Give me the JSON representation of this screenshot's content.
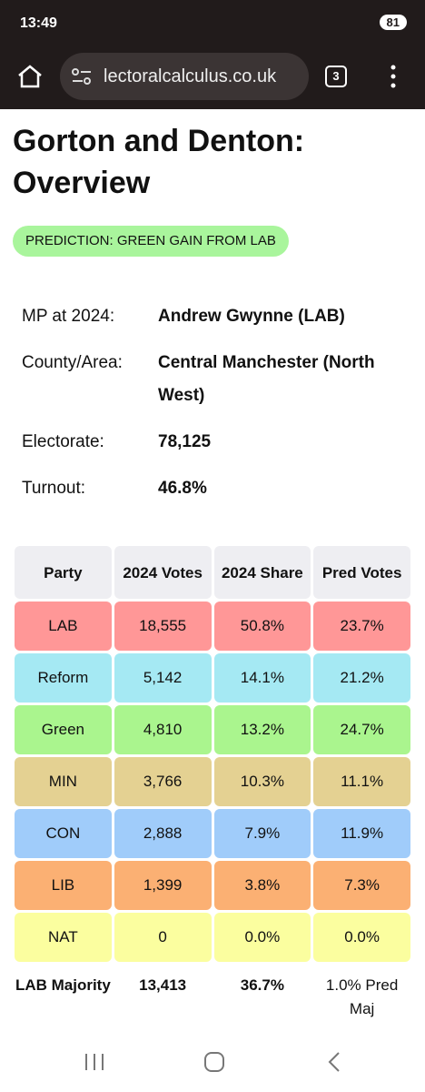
{
  "status_bar": {
    "time": "13:49",
    "battery": "81"
  },
  "browser": {
    "url": "lectoralcalculus.co.uk",
    "tab_count": "3"
  },
  "page": {
    "title": "Gorton and Denton: Overview",
    "prediction": "PREDICTION: GREEN GAIN FROM LAB",
    "info": [
      {
        "label": "MP at 2024:",
        "value": "Andrew Gwynne  (LAB)"
      },
      {
        "label": "County/Area:",
        "value": "Central Manchester (North West)"
      },
      {
        "label": "Electorate:",
        "value": "78,125"
      },
      {
        "label": "Turnout:",
        "value": "46.8%"
      }
    ],
    "table": {
      "headers": [
        "Party",
        "2024 Votes",
        "2024 Share",
        "Pred Votes"
      ],
      "rows": [
        {
          "cells": [
            "LAB",
            "18,555",
            "50.8%",
            "23.7%"
          ],
          "color": "#ff9797"
        },
        {
          "cells": [
            "Reform",
            "5,142",
            "14.1%",
            "21.2%"
          ],
          "color": "#a5e9f3"
        },
        {
          "cells": [
            "Green",
            "4,810",
            "13.2%",
            "24.7%"
          ],
          "color": "#aaf58e"
        },
        {
          "cells": [
            "MIN",
            "3,766",
            "10.3%",
            "11.1%"
          ],
          "color": "#e4d192"
        },
        {
          "cells": [
            "CON",
            "2,888",
            "7.9%",
            "11.9%"
          ],
          "color": "#a0ccfa"
        },
        {
          "cells": [
            "LIB",
            "1,399",
            "3.8%",
            "7.3%"
          ],
          "color": "#fbb073"
        },
        {
          "cells": [
            "NAT",
            "0",
            "0.0%",
            "0.0%"
          ],
          "color": "#fbfe9f"
        }
      ],
      "footer": [
        "LAB Majority",
        "13,413",
        "36.7%",
        "1.0% Pred Maj"
      ]
    }
  }
}
